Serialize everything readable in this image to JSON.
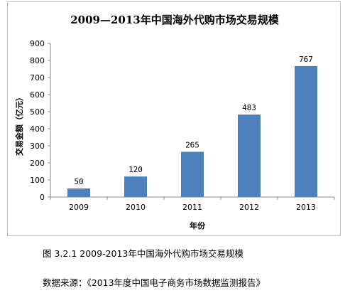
{
  "chart_data": {
    "type": "bar",
    "title": "2009—2013年中国海外代购市场交易规模",
    "xlabel": "年份",
    "ylabel": "交易金额（亿元）",
    "categories": [
      "2009",
      "2010",
      "2011",
      "2012",
      "2013"
    ],
    "values": [
      50,
      120,
      265,
      483,
      767
    ],
    "ylim": [
      0,
      900
    ],
    "yticks": [
      0,
      100,
      200,
      300,
      400,
      500,
      600,
      700,
      800,
      900
    ],
    "grid": false,
    "legend": "none",
    "bar_color": "#4f81bd"
  },
  "captions": {
    "figure": "图 3.2.1 2009-2013年中国海外代购市场交易规模",
    "source": "数据来源：《2013年度中国电子商务市场数据监测报告》"
  }
}
